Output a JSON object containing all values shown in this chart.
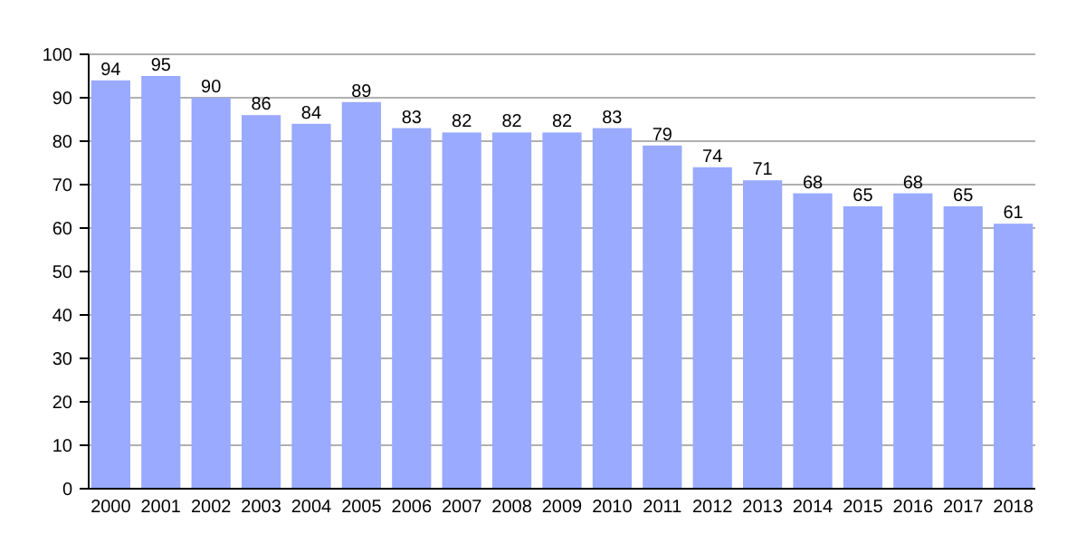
{
  "chart_data": {
    "type": "bar",
    "categories": [
      "2000",
      "2001",
      "2002",
      "2003",
      "2004",
      "2005",
      "2006",
      "2007",
      "2008",
      "2009",
      "2010",
      "2011",
      "2012",
      "2013",
      "2014",
      "2015",
      "2016",
      "2017",
      "2018"
    ],
    "values": [
      94,
      95,
      90,
      86,
      84,
      89,
      83,
      82,
      82,
      82,
      83,
      79,
      74,
      71,
      68,
      65,
      68,
      65,
      61
    ],
    "color": "#99aaff",
    "ylim": [
      0,
      100
    ],
    "yticks": [
      0,
      10,
      20,
      30,
      40,
      50,
      60,
      70,
      80,
      90,
      100
    ],
    "grid": "y",
    "data_labels": true
  }
}
